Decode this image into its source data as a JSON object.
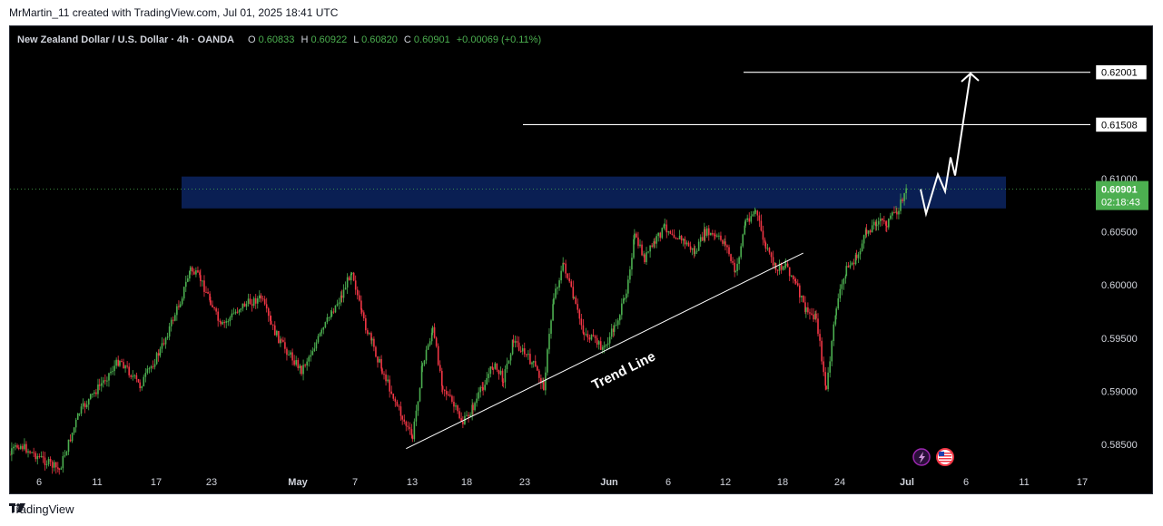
{
  "caption": "MrMartin_11 created with TradingView.com, Jul 01, 2025 18:41 UTC",
  "header": {
    "symbol": "New Zealand Dollar / U.S. Dollar · 4h · OANDA",
    "o_label": "O",
    "o_value": "0.60833",
    "h_label": "H",
    "h_value": "0.60922",
    "l_label": "L",
    "l_value": "0.60820",
    "c_label": "C",
    "c_value": "0.60901",
    "change": "+0.00069 (+0.11%)"
  },
  "footer": {
    "brand": "TradingView"
  },
  "colors": {
    "up": "#4caf50",
    "down": "#f23645",
    "zone": "#0c2461",
    "price_tag": "#4caf50",
    "text": "#d1d4dc"
  },
  "chart_data": {
    "type": "candlestick",
    "timeframe": "4h",
    "y_ticks": [
      "0.58500",
      "0.59000",
      "0.59500",
      "0.60000",
      "0.60500",
      "0.61000"
    ],
    "x_ticks": [
      "6",
      "11",
      "17",
      "23",
      "May",
      "7",
      "13",
      "18",
      "23",
      "Jun",
      "6",
      "12",
      "18",
      "24",
      "Jul",
      "6",
      "11",
      "17"
    ],
    "current_price": "0.60901",
    "countdown": "02:18:43",
    "target_levels": [
      "0.62001",
      "0.61508"
    ],
    "resistance_zone": {
      "low": 0.6072,
      "high": 0.6102
    },
    "trend_line": {
      "label": "Trend Line",
      "start": [
        "May 13",
        0.5846
      ],
      "end": [
        "Jun 20",
        0.603
      ]
    },
    "projection_path": [
      0.609,
      0.6067,
      0.6104,
      0.6088,
      0.612,
      0.6103,
      0.6199
    ],
    "close_path": [
      [
        "Apr 2",
        0.5829
      ],
      [
        "Apr 4",
        0.585
      ],
      [
        "Apr 8",
        0.5826
      ],
      [
        "Apr 10",
        0.588
      ],
      [
        "Apr 12",
        0.5905
      ],
      [
        "Apr 14",
        0.593
      ],
      [
        "Apr 16",
        0.5905
      ],
      [
        "Apr 18",
        0.5938
      ],
      [
        "Apr 20",
        0.5985
      ],
      [
        "Apr 21",
        0.6015
      ],
      [
        "Apr 22",
        0.6005
      ],
      [
        "Apr 23",
        0.5985
      ],
      [
        "Apr 24",
        0.596
      ],
      [
        "Apr 26",
        0.598
      ],
      [
        "Apr 28",
        0.5988
      ],
      [
        "Apr 29",
        0.5962
      ],
      [
        "Apr 30",
        0.5945
      ],
      [
        "May 2",
        0.592
      ],
      [
        "May 4",
        0.5955
      ],
      [
        "May 5",
        0.5975
      ],
      [
        "May 6",
        0.599
      ],
      [
        "May 7",
        0.6015
      ],
      [
        "May 8",
        0.597
      ],
      [
        "May 9",
        0.5945
      ],
      [
        "May 10",
        0.592
      ],
      [
        "May 12",
        0.5875
      ],
      [
        "May 13",
        0.5856
      ],
      [
        "May 14",
        0.5925
      ],
      [
        "May 15",
        0.5958
      ],
      [
        "May 16",
        0.5905
      ],
      [
        "May 18",
        0.587
      ],
      [
        "May 19",
        0.5885
      ],
      [
        "May 20",
        0.5905
      ],
      [
        "May 21",
        0.5925
      ],
      [
        "May 22",
        0.5912
      ],
      [
        "May 23",
        0.5948
      ],
      [
        "May 25",
        0.5925
      ],
      [
        "May 26",
        0.5905
      ],
      [
        "May 27",
        0.599
      ],
      [
        "May 28",
        0.602
      ],
      [
        "May 29",
        0.5985
      ],
      [
        "May 30",
        0.5955
      ],
      [
        "Jun 1",
        0.594
      ],
      [
        "Jun 2",
        0.596
      ],
      [
        "Jun 3",
        0.5985
      ],
      [
        "Jun 4",
        0.6045
      ],
      [
        "Jun 5",
        0.6025
      ],
      [
        "Jun 6",
        0.604
      ],
      [
        "Jun 7",
        0.6055
      ],
      [
        "Jun 9",
        0.604
      ],
      [
        "Jun 10",
        0.603
      ],
      [
        "Jun 11",
        0.605
      ],
      [
        "Jun 12",
        0.6045
      ],
      [
        "Jun 13",
        0.604
      ],
      [
        "Jun 14",
        0.601
      ],
      [
        "Jun 15",
        0.606
      ],
      [
        "Jun 16",
        0.607
      ],
      [
        "Jun 17",
        0.6035
      ],
      [
        "Jun 18",
        0.6015
      ],
      [
        "Jun 19",
        0.602
      ],
      [
        "Jun 20",
        0.6
      ],
      [
        "Jun 21",
        0.5975
      ],
      [
        "Jun 22",
        0.597
      ],
      [
        "Jun 23",
        0.59
      ],
      [
        "Jun 24",
        0.598
      ],
      [
        "Jun 25",
        0.6015
      ],
      [
        "Jun 26",
        0.6025
      ],
      [
        "Jun 27",
        0.605
      ],
      [
        "Jun 28",
        0.606
      ],
      [
        "Jun 29",
        0.6058
      ],
      [
        "Jun 30",
        0.607
      ],
      [
        "Jul 1",
        0.609
      ]
    ]
  }
}
